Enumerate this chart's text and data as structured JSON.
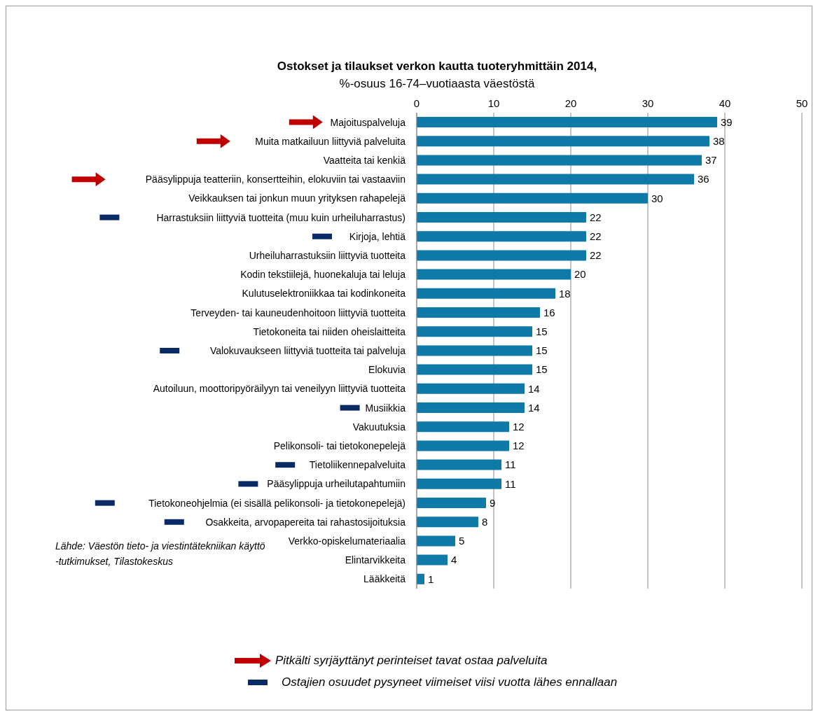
{
  "chart_data": {
    "type": "bar",
    "orientation": "horizontal",
    "title": "Ostokset ja tilaukset verkon kautta tuoteryhmittäin 2014,",
    "subtitle": "%-osuus 16-74–vuotiaasta väestöstä",
    "categories": [
      "Majoituspalveluja",
      "Muita matkailuun liittyviä palveluita",
      "Vaatteita tai kenkiä",
      "Pääsylippuja teatteriin, konsertteihin, elokuviin tai vastaaviin",
      "Veikkauksen tai jonkun muun yrityksen rahapelejä",
      "Harrastuksiin liittyviä tuotteita (muu kuin urheiluharrastus)",
      "Kirjoja, lehtiä",
      "Urheiluharrastuksiin liittyviä tuotteita",
      "Kodin tekstiilejä, huonekaluja tai leluja",
      "Kulutuselektroniikkaa tai kodinkoneita",
      "Terveyden- tai kauneudenhoitoon liittyviä tuotteita",
      "Tietokoneita tai niiden oheislaitteita",
      "Valokuvaukseen liittyviä tuotteita tai palveluja",
      "Elokuvia",
      "Autoiluun, moottoripyöräilyyn tai veneilyyn liittyviä tuotteita",
      "Musiikkia",
      "Vakuutuksia",
      "Pelikonsoli- tai tietokonepelejä",
      "Tietoliikennepalveluita",
      "Pääsylippuja urheilutapahtumiin",
      "Tietokoneohjelmia (ei sisällä pelikonsoli- ja tietokonepelejä)",
      "Osakkeita, arvopapereita tai rahastosijoituksia",
      "Verkko-opiskelumateriaalia",
      "Elintarvikkeita",
      "Lääkkeitä"
    ],
    "values": [
      39,
      38,
      37,
      36,
      30,
      22,
      22,
      22,
      20,
      18,
      16,
      15,
      15,
      15,
      14,
      14,
      12,
      12,
      11,
      11,
      9,
      8,
      5,
      4,
      1
    ],
    "color": "#0f79a8",
    "xlim": [
      0,
      50
    ],
    "xticks": [
      0,
      10,
      20,
      30,
      40,
      50
    ],
    "grid": "x",
    "data_labels": true,
    "annotations": [
      "Lähde: Väestön tieto- ja viestintätekniikan käyttö -tutkimukset, Tilastokeskus",
      "Pitkälti syrjäyttänyt perinteiset tavat ostaa palveluita",
      "Ostajien osuudet pysyneet viimeiset viisi vuotta lähes ennallaan"
    ]
  }
}
